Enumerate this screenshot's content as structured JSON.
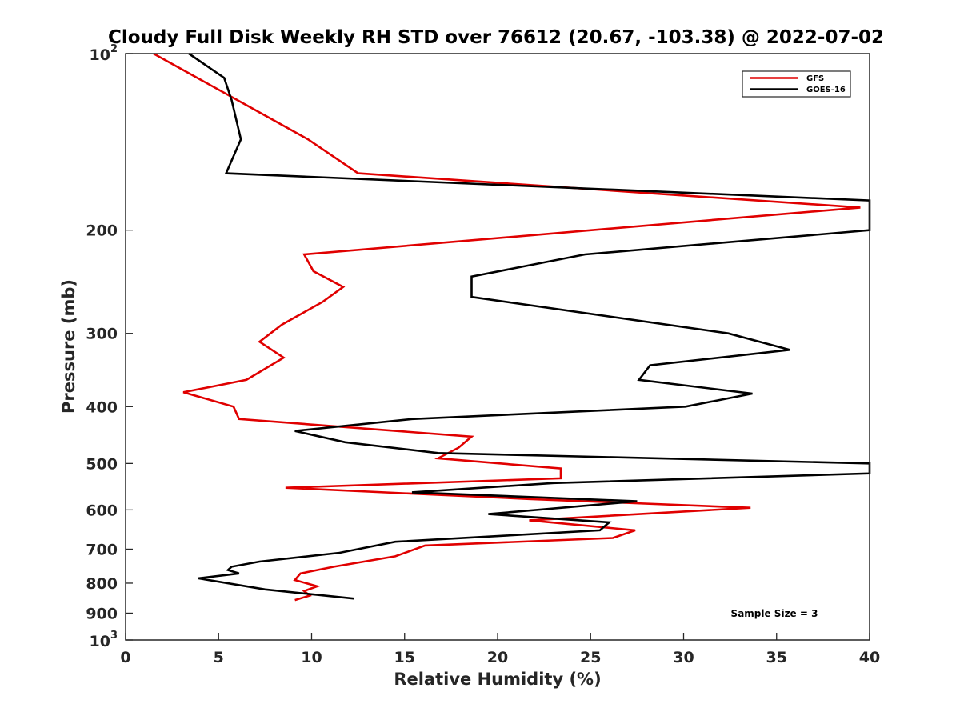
{
  "chart_data": {
    "type": "line",
    "title": "Cloudy Full Disk Weekly RH STD over 76612 (20.67, -103.38) @ 2022-07-02",
    "xlabel": "Relative Humidity (%)",
    "ylabel": "Pressure (mb)",
    "xlim": [
      0,
      40
    ],
    "ylim": [
      100,
      1000
    ],
    "yscale": "log",
    "y_reversed": true,
    "xticks": [
      0,
      5,
      10,
      15,
      20,
      25,
      30,
      35,
      40
    ],
    "xtick_labels": [
      "0",
      "5",
      "10",
      "15",
      "20",
      "25",
      "30",
      "35",
      "40"
    ],
    "yticks": [
      {
        "value": 100,
        "base": "10",
        "exp": "2"
      },
      {
        "value": 200,
        "label": "200"
      },
      {
        "value": 300,
        "label": "300"
      },
      {
        "value": 400,
        "label": "400"
      },
      {
        "value": 500,
        "label": "500"
      },
      {
        "value": 600,
        "label": "600"
      },
      {
        "value": 700,
        "label": "700"
      },
      {
        "value": 800,
        "label": "800"
      },
      {
        "value": 900,
        "label": "900"
      },
      {
        "value": 1000,
        "base": "10",
        "exp": "3"
      }
    ],
    "legend": {
      "position": "top-right",
      "entries": [
        "GFS",
        "GOES-16"
      ]
    },
    "annotation": "Sample Size = 3",
    "series": [
      {
        "name": "GFS",
        "color": "#e00000",
        "x": [
          1.5,
          6,
          9.8,
          12.5,
          39.5,
          9.6,
          10.1,
          11.7,
          10.6,
          8.4,
          7.2,
          8.5,
          6.5,
          3.1,
          5.8,
          6.1,
          18.6,
          17.9,
          16.8,
          23.4,
          23.4,
          8.6,
          21.7,
          33.6,
          21.7,
          27.4,
          26.2,
          16.1,
          14.5,
          11.2,
          9.4,
          9.1,
          10.3,
          9.6,
          9.9,
          9.1
        ],
        "y": [
          100,
          120,
          140,
          160,
          183,
          220,
          235,
          250,
          265,
          290,
          310,
          330,
          360,
          378,
          400,
          420,
          450,
          470,
          490,
          510,
          530,
          550,
          575,
          595,
          625,
          650,
          670,
          690,
          720,
          750,
          770,
          790,
          810,
          825,
          840,
          855
        ]
      },
      {
        "name": "GOES-16",
        "color": "#000000",
        "x": [
          3.4,
          5.3,
          5.7,
          6.2,
          5.4,
          40,
          40,
          24.7,
          18.6,
          18.6,
          32.4,
          35.7,
          28.2,
          27.6,
          33.7,
          30.1,
          15.4,
          9.1,
          11.8,
          16.8,
          40,
          40,
          23,
          15.4,
          27.5,
          19.5,
          26,
          25.5,
          14.5,
          11.5,
          7.2,
          5.7,
          5.5,
          6.1,
          3.9,
          7.5,
          12.3
        ],
        "y": [
          100,
          110,
          120,
          140,
          160,
          178,
          200,
          220,
          240,
          260,
          300,
          320,
          340,
          360,
          380,
          400,
          420,
          440,
          460,
          480,
          500,
          520,
          540,
          560,
          580,
          610,
          630,
          650,
          680,
          710,
          735,
          750,
          760,
          770,
          785,
          820,
          850
        ]
      }
    ]
  }
}
